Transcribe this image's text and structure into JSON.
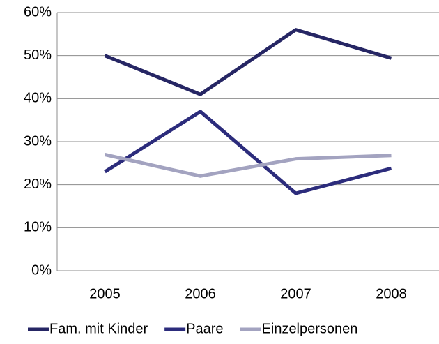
{
  "chart_data": {
    "type": "line",
    "categories": [
      "2005",
      "2006",
      "2007",
      "2008"
    ],
    "series": [
      {
        "name": "Fam. mit Kinder",
        "color": "#262664",
        "values": [
          50,
          41,
          56,
          49.4
        ]
      },
      {
        "name": "Paare",
        "color": "#2c2c7c",
        "values": [
          23,
          37,
          18,
          23.8
        ]
      },
      {
        "name": "Einzelpersonen",
        "color": "#a3a3c0",
        "values": [
          27,
          22,
          26,
          26.8
        ]
      }
    ],
    "ylim": [
      0,
      60
    ],
    "yticks": [
      {
        "value": 0,
        "label": "0%"
      },
      {
        "value": 10,
        "label": "10%"
      },
      {
        "value": 20,
        "label": "20%"
      },
      {
        "value": 30,
        "label": "30%"
      },
      {
        "value": 40,
        "label": "40%"
      },
      {
        "value": 50,
        "label": "50%"
      },
      {
        "value": 60,
        "label": "60%"
      }
    ],
    "grid": true,
    "legend": "bottom"
  }
}
